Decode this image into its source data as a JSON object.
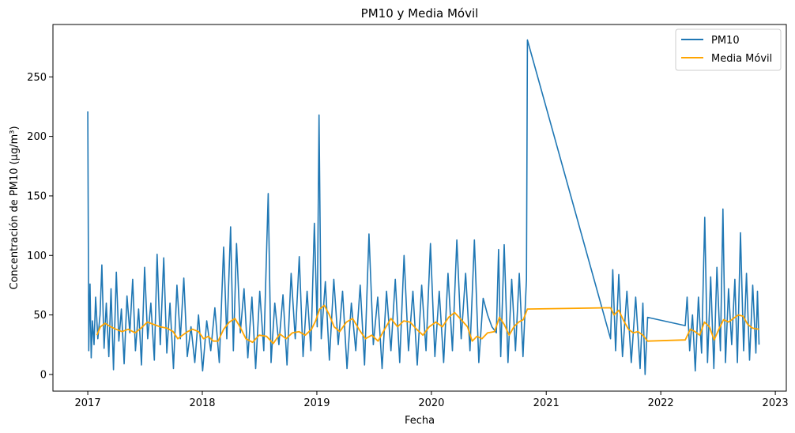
{
  "chart_data": {
    "type": "line",
    "title": "PM10 y Media Móvil",
    "xlabel": "Fecha",
    "ylabel": "Concentración de PM10 (µg/m³)",
    "xlim": [
      "2016-09-12",
      "2023-02-05"
    ],
    "ylim": [
      -14,
      294
    ],
    "x_ticks": [
      "2017",
      "2018",
      "2019",
      "2020",
      "2021",
      "2022",
      "2023"
    ],
    "y_ticks": [
      0,
      50,
      100,
      150,
      200,
      250
    ],
    "legend_position": "top-right",
    "colors": {
      "pm10": "#1f77b4",
      "media_movil": "#ffa500"
    },
    "series": [
      {
        "name": "PM10",
        "color": "#1f77b4",
        "points": [
          [
            "2017-01-01",
            221
          ],
          [
            "2017-01-04",
            20
          ],
          [
            "2017-01-08",
            76
          ],
          [
            "2017-01-12",
            14
          ],
          [
            "2017-01-16",
            45
          ],
          [
            "2017-01-21",
            25
          ],
          [
            "2017-01-26",
            65
          ],
          [
            "2017-02-02",
            30
          ],
          [
            "2017-02-09",
            50
          ],
          [
            "2017-02-15",
            92
          ],
          [
            "2017-02-22",
            22
          ],
          [
            "2017-03-01",
            60
          ],
          [
            "2017-03-09",
            15
          ],
          [
            "2017-03-16",
            72
          ],
          [
            "2017-03-24",
            4
          ],
          [
            "2017-04-02",
            86
          ],
          [
            "2017-04-10",
            28
          ],
          [
            "2017-04-18",
            55
          ],
          [
            "2017-04-27",
            9
          ],
          [
            "2017-05-06",
            66
          ],
          [
            "2017-05-15",
            35
          ],
          [
            "2017-05-24",
            80
          ],
          [
            "2017-06-02",
            20
          ],
          [
            "2017-06-12",
            55
          ],
          [
            "2017-06-21",
            8
          ],
          [
            "2017-07-01",
            90
          ],
          [
            "2017-07-11",
            30
          ],
          [
            "2017-07-21",
            60
          ],
          [
            "2017-08-01",
            12
          ],
          [
            "2017-08-10",
            101
          ],
          [
            "2017-08-20",
            25
          ],
          [
            "2017-08-31",
            98
          ],
          [
            "2017-09-10",
            18
          ],
          [
            "2017-09-20",
            60
          ],
          [
            "2017-10-01",
            5
          ],
          [
            "2017-10-12",
            75
          ],
          [
            "2017-10-23",
            30
          ],
          [
            "2017-11-03",
            81
          ],
          [
            "2017-11-14",
            15
          ],
          [
            "2017-11-26",
            40
          ],
          [
            "2017-12-08",
            10
          ],
          [
            "2017-12-20",
            50
          ],
          [
            "2018-01-02",
            3
          ],
          [
            "2018-01-15",
            45
          ],
          [
            "2018-01-28",
            20
          ],
          [
            "2018-02-10",
            56
          ],
          [
            "2018-02-24",
            10
          ],
          [
            "2018-03-10",
            107
          ],
          [
            "2018-03-20",
            30
          ],
          [
            "2018-04-01",
            124
          ],
          [
            "2018-04-10",
            20
          ],
          [
            "2018-04-20",
            110
          ],
          [
            "2018-05-02",
            35
          ],
          [
            "2018-05-14",
            72
          ],
          [
            "2018-05-26",
            14
          ],
          [
            "2018-06-08",
            65
          ],
          [
            "2018-06-20",
            5
          ],
          [
            "2018-07-03",
            70
          ],
          [
            "2018-07-16",
            20
          ],
          [
            "2018-07-30",
            152
          ],
          [
            "2018-08-08",
            10
          ],
          [
            "2018-08-20",
            60
          ],
          [
            "2018-09-02",
            25
          ],
          [
            "2018-09-15",
            67
          ],
          [
            "2018-09-28",
            8
          ],
          [
            "2018-10-11",
            85
          ],
          [
            "2018-10-24",
            30
          ],
          [
            "2018-11-06",
            99
          ],
          [
            "2018-11-18",
            15
          ],
          [
            "2018-12-01",
            70
          ],
          [
            "2018-12-13",
            20
          ],
          [
            "2018-12-24",
            127
          ],
          [
            "2019-01-02",
            40
          ],
          [
            "2019-01-08",
            218
          ],
          [
            "2019-01-15",
            30
          ],
          [
            "2019-01-28",
            78
          ],
          [
            "2019-02-10",
            12
          ],
          [
            "2019-02-24",
            80
          ],
          [
            "2019-03-10",
            25
          ],
          [
            "2019-03-24",
            70
          ],
          [
            "2019-04-07",
            5
          ],
          [
            "2019-04-21",
            60
          ],
          [
            "2019-05-05",
            20
          ],
          [
            "2019-05-19",
            75
          ],
          [
            "2019-06-02",
            8
          ],
          [
            "2019-06-16",
            118
          ],
          [
            "2019-06-30",
            25
          ],
          [
            "2019-07-14",
            65
          ],
          [
            "2019-07-28",
            5
          ],
          [
            "2019-08-11",
            70
          ],
          [
            "2019-08-25",
            20
          ],
          [
            "2019-09-08",
            80
          ],
          [
            "2019-09-22",
            10
          ],
          [
            "2019-10-06",
            100
          ],
          [
            "2019-10-20",
            20
          ],
          [
            "2019-11-03",
            70
          ],
          [
            "2019-11-17",
            8
          ],
          [
            "2019-12-01",
            75
          ],
          [
            "2019-12-15",
            20
          ],
          [
            "2019-12-29",
            110
          ],
          [
            "2020-01-12",
            15
          ],
          [
            "2020-01-26",
            70
          ],
          [
            "2020-02-09",
            10
          ],
          [
            "2020-02-23",
            85
          ],
          [
            "2020-03-08",
            20
          ],
          [
            "2020-03-22",
            113
          ],
          [
            "2020-04-05",
            30
          ],
          [
            "2020-04-19",
            85
          ],
          [
            "2020-05-03",
            20
          ],
          [
            "2020-05-17",
            113
          ],
          [
            "2020-05-31",
            10
          ],
          [
            "2020-06-14",
            64
          ],
          [
            "2020-06-28",
            50
          ],
          [
            "2020-07-12",
            40
          ],
          [
            "2020-07-26",
            35
          ],
          [
            "2020-08-02",
            105
          ],
          [
            "2020-08-09",
            15
          ],
          [
            "2020-08-20",
            109
          ],
          [
            "2020-09-01",
            10
          ],
          [
            "2020-09-13",
            80
          ],
          [
            "2020-09-25",
            20
          ],
          [
            "2020-10-07",
            85
          ],
          [
            "2020-10-19",
            15
          ],
          [
            "2020-10-30",
            80
          ],
          [
            "2020-11-02",
            281
          ],
          [
            "2021-07-25",
            30
          ],
          [
            "2021-08-01",
            88
          ],
          [
            "2021-08-10",
            20
          ],
          [
            "2021-08-20",
            84
          ],
          [
            "2021-09-01",
            15
          ],
          [
            "2021-09-15",
            70
          ],
          [
            "2021-09-29",
            10
          ],
          [
            "2021-10-13",
            65
          ],
          [
            "2021-10-27",
            5
          ],
          [
            "2021-11-05",
            60
          ],
          [
            "2021-11-12",
            0
          ],
          [
            "2021-11-20",
            48
          ],
          [
            "2022-03-20",
            41
          ],
          [
            "2022-03-26",
            65
          ],
          [
            "2022-04-03",
            20
          ],
          [
            "2022-04-12",
            50
          ],
          [
            "2022-04-21",
            3
          ],
          [
            "2022-05-01",
            65
          ],
          [
            "2022-05-11",
            18
          ],
          [
            "2022-05-21",
            132
          ],
          [
            "2022-05-30",
            10
          ],
          [
            "2022-06-09",
            82
          ],
          [
            "2022-06-19",
            5
          ],
          [
            "2022-06-29",
            90
          ],
          [
            "2022-07-10",
            20
          ],
          [
            "2022-07-18",
            139
          ],
          [
            "2022-07-26",
            10
          ],
          [
            "2022-08-05",
            72
          ],
          [
            "2022-08-15",
            25
          ],
          [
            "2022-08-25",
            80
          ],
          [
            "2022-09-02",
            10
          ],
          [
            "2022-09-12",
            119
          ],
          [
            "2022-09-22",
            20
          ],
          [
            "2022-10-01",
            85
          ],
          [
            "2022-10-11",
            12
          ],
          [
            "2022-10-21",
            75
          ],
          [
            "2022-10-31",
            18
          ],
          [
            "2022-11-05",
            70
          ],
          [
            "2022-11-10",
            25
          ]
        ]
      },
      {
        "name": "Media Móvil",
        "color": "#ffa500",
        "points": [
          [
            "2017-01-30",
            33
          ],
          [
            "2017-02-10",
            40
          ],
          [
            "2017-02-25",
            43
          ],
          [
            "2017-03-15",
            40
          ],
          [
            "2017-04-01",
            38
          ],
          [
            "2017-04-20",
            36
          ],
          [
            "2017-05-10",
            38
          ],
          [
            "2017-06-01",
            35
          ],
          [
            "2017-06-20",
            39
          ],
          [
            "2017-07-10",
            44
          ],
          [
            "2017-07-30",
            42
          ],
          [
            "2017-08-20",
            40
          ],
          [
            "2017-09-10",
            39
          ],
          [
            "2017-09-30",
            36
          ],
          [
            "2017-10-15",
            30
          ],
          [
            "2017-10-30",
            33
          ],
          [
            "2017-11-15",
            36
          ],
          [
            "2017-12-01",
            38
          ],
          [
            "2017-12-20",
            36
          ],
          [
            "2018-01-05",
            30
          ],
          [
            "2018-01-20",
            32
          ],
          [
            "2018-02-05",
            28
          ],
          [
            "2018-02-20",
            28
          ],
          [
            "2018-03-10",
            38
          ],
          [
            "2018-03-28",
            44
          ],
          [
            "2018-04-15",
            47
          ],
          [
            "2018-05-01",
            40
          ],
          [
            "2018-05-20",
            30
          ],
          [
            "2018-06-10",
            27
          ],
          [
            "2018-07-01",
            33
          ],
          [
            "2018-07-25",
            32
          ],
          [
            "2018-08-15",
            26
          ],
          [
            "2018-09-05",
            34
          ],
          [
            "2018-09-25",
            30
          ],
          [
            "2018-10-15",
            35
          ],
          [
            "2018-11-05",
            36
          ],
          [
            "2018-11-25",
            33
          ],
          [
            "2018-12-15",
            38
          ],
          [
            "2018-12-28",
            45
          ],
          [
            "2019-01-10",
            55
          ],
          [
            "2019-01-25",
            58
          ],
          [
            "2019-02-10",
            50
          ],
          [
            "2019-02-25",
            40
          ],
          [
            "2019-03-15",
            36
          ],
          [
            "2019-04-05",
            44
          ],
          [
            "2019-04-25",
            47
          ],
          [
            "2019-05-15",
            38
          ],
          [
            "2019-06-05",
            30
          ],
          [
            "2019-06-25",
            33
          ],
          [
            "2019-07-15",
            28
          ],
          [
            "2019-08-05",
            38
          ],
          [
            "2019-08-25",
            47
          ],
          [
            "2019-09-15",
            40
          ],
          [
            "2019-10-05",
            45
          ],
          [
            "2019-10-25",
            44
          ],
          [
            "2019-11-15",
            38
          ],
          [
            "2019-12-05",
            33
          ],
          [
            "2019-12-25",
            40
          ],
          [
            "2020-01-15",
            44
          ],
          [
            "2020-02-05",
            40
          ],
          [
            "2020-02-25",
            48
          ],
          [
            "2020-03-15",
            52
          ],
          [
            "2020-04-05",
            46
          ],
          [
            "2020-04-25",
            40
          ],
          [
            "2020-05-10",
            28
          ],
          [
            "2020-05-25",
            32
          ],
          [
            "2020-06-10",
            30
          ],
          [
            "2020-06-28",
            35
          ],
          [
            "2020-07-20",
            36
          ],
          [
            "2020-08-05",
            48
          ],
          [
            "2020-08-20",
            42
          ],
          [
            "2020-09-05",
            33
          ],
          [
            "2020-09-20",
            40
          ],
          [
            "2020-10-05",
            44
          ],
          [
            "2020-10-20",
            46
          ],
          [
            "2020-11-02",
            55
          ],
          [
            "2021-07-25",
            56
          ],
          [
            "2021-08-05",
            50
          ],
          [
            "2021-08-20",
            54
          ],
          [
            "2021-09-05",
            45
          ],
          [
            "2021-09-20",
            38
          ],
          [
            "2021-10-05",
            35
          ],
          [
            "2021-10-20",
            36
          ],
          [
            "2021-11-05",
            33
          ],
          [
            "2021-11-20",
            28
          ],
          [
            "2022-03-20",
            29
          ],
          [
            "2022-04-05",
            38
          ],
          [
            "2022-04-20",
            36
          ],
          [
            "2022-05-05",
            33
          ],
          [
            "2022-05-20",
            44
          ],
          [
            "2022-06-05",
            40
          ],
          [
            "2022-06-20",
            29
          ],
          [
            "2022-07-05",
            38
          ],
          [
            "2022-07-20",
            46
          ],
          [
            "2022-08-05",
            44
          ],
          [
            "2022-08-20",
            47
          ],
          [
            "2022-09-05",
            50
          ],
          [
            "2022-09-20",
            49
          ],
          [
            "2022-10-05",
            42
          ],
          [
            "2022-10-20",
            39
          ],
          [
            "2022-11-10",
            38
          ]
        ]
      }
    ]
  }
}
